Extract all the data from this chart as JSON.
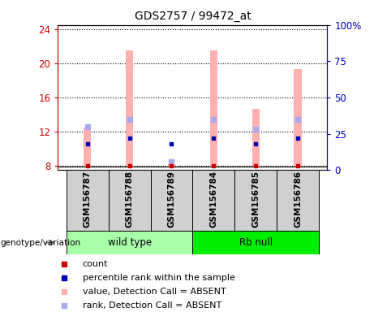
{
  "title": "GDS2757 / 99472_at",
  "categories": [
    "GSM156787",
    "GSM156788",
    "GSM156789",
    "GSM156784",
    "GSM156785",
    "GSM156786"
  ],
  "ylim_left": [
    7.5,
    24.5
  ],
  "ylim_right": [
    0,
    100
  ],
  "yticks_left": [
    8,
    12,
    16,
    20,
    24
  ],
  "yticks_right": [
    0,
    25,
    50,
    75,
    100
  ],
  "ytick_labels_right": [
    "0",
    "25",
    "50",
    "75",
    "100%"
  ],
  "pink_bar_tops": [
    12.5,
    21.5,
    8.15,
    21.5,
    14.7,
    19.3
  ],
  "pink_bar_base": 7.9,
  "light_blue_y_right": [
    30,
    35,
    6,
    35,
    28,
    35
  ],
  "red_y_left": [
    8.05,
    8.05,
    8.05,
    8.05,
    8.05,
    8.05
  ],
  "dark_blue_y_right": [
    18,
    22,
    18,
    22,
    18,
    22
  ],
  "pink_color": "#ffb0b0",
  "light_blue_color": "#aaaaee",
  "red_color": "#cc0000",
  "dark_blue_color": "#0000bb",
  "axis_left_color": "#cc0000",
  "axis_right_color": "#0000bb",
  "background_color": "#ffffff",
  "bar_width": 0.18,
  "figsize": [
    4.61,
    3.84
  ],
  "dpi": 100,
  "legend_items": [
    {
      "label": "count",
      "color": "#cc0000"
    },
    {
      "label": "percentile rank within the sample",
      "color": "#0000bb"
    },
    {
      "label": "value, Detection Call = ABSENT",
      "color": "#ffb0b0"
    },
    {
      "label": "rank, Detection Call = ABSENT",
      "color": "#aaaaee"
    }
  ],
  "wt_color": "#aaffaa",
  "rb_color": "#00ee00",
  "label_bg_color": "#d0d0d0"
}
